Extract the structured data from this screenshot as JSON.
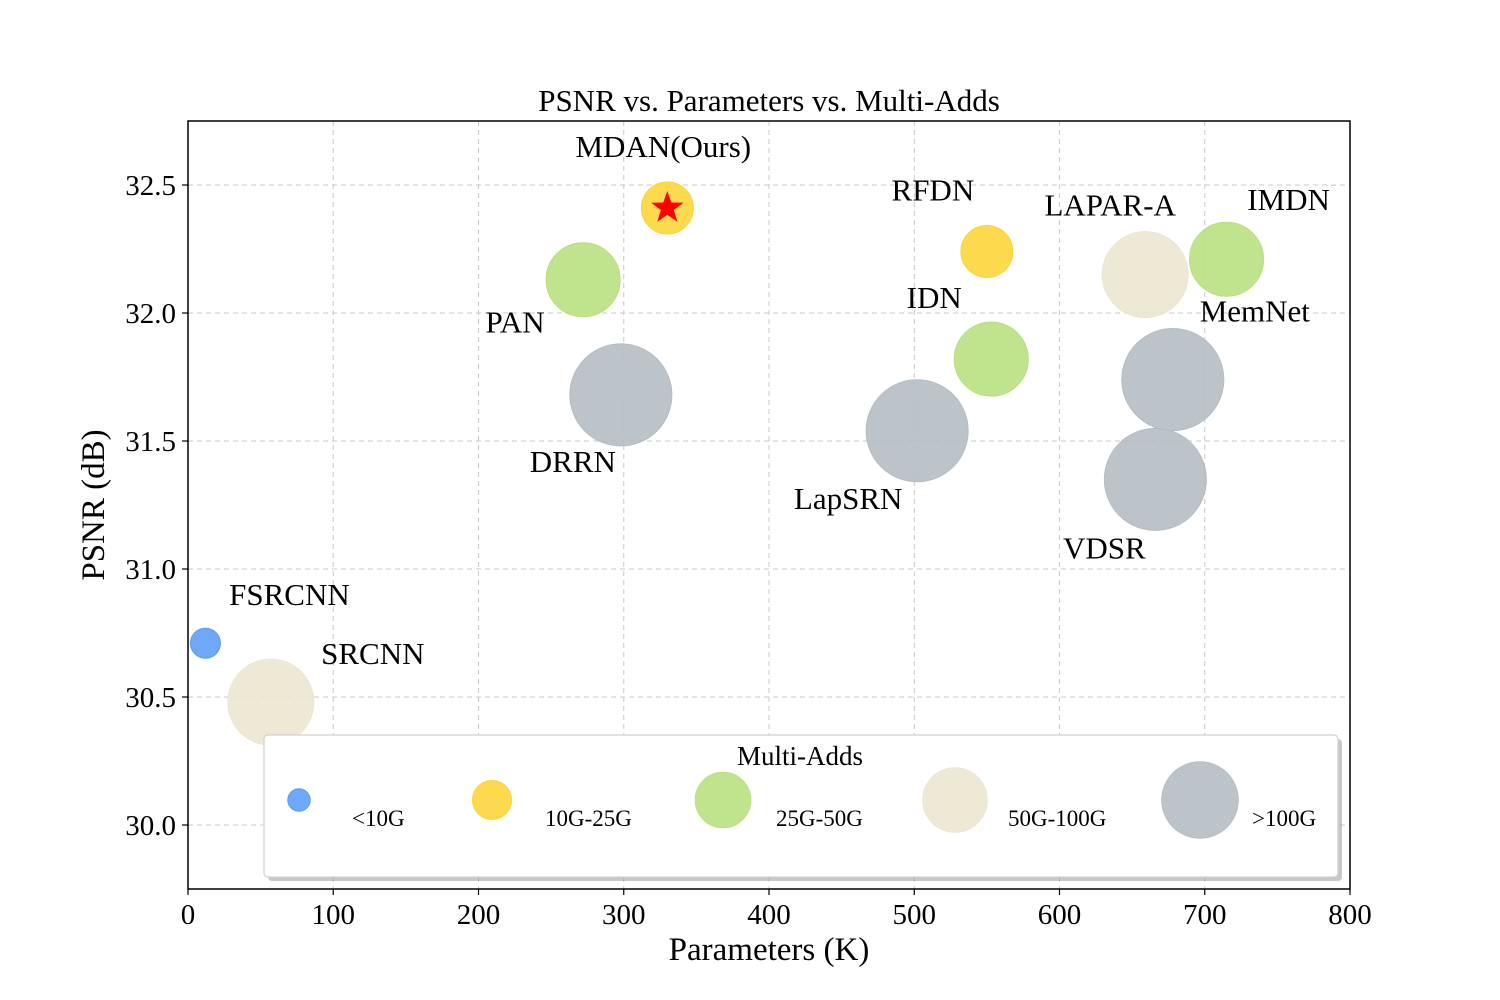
{
  "chart_data": {
    "type": "scatter",
    "title": "PSNR vs. Parameters vs. Multi-Adds",
    "xlabel": "Parameters (K)",
    "ylabel": "PSNR (dB)",
    "xlim": [
      0,
      800
    ],
    "ylim": [
      29.75,
      32.75
    ],
    "x_ticks": [
      0,
      100,
      200,
      300,
      400,
      500,
      600,
      700,
      800
    ],
    "x_tick_labels": [
      "0",
      "100",
      "200",
      "300",
      "400",
      "500",
      "600",
      "700",
      "800"
    ],
    "y_ticks": [
      30.0,
      30.5,
      31.0,
      31.5,
      32.0,
      32.5
    ],
    "y_tick_labels": [
      "30.0",
      "30.5",
      "31.0",
      "31.5",
      "32.0",
      "32.5"
    ],
    "grid": true,
    "categories": [
      {
        "label": "<10G",
        "color": "#5b9cf5"
      },
      {
        "label": "10G-25G",
        "color": "#fdd434"
      },
      {
        "label": "25G-50G",
        "color": "#b7df7e"
      },
      {
        "label": "50G-100G",
        "color": "#ebe6cf"
      },
      {
        "label": ">100G",
        "color": "#b3bcc2"
      }
    ],
    "points": [
      {
        "name": "FSRCNN",
        "x": 12,
        "y": 30.71,
        "category": "<10G"
      },
      {
        "name": "SRCNN",
        "x": 57,
        "y": 30.48,
        "category": "50G-100G"
      },
      {
        "name": "PAN",
        "x": 272,
        "y": 32.13,
        "category": "25G-50G"
      },
      {
        "name": "DRRN",
        "x": 298,
        "y": 31.68,
        "category": ">100G"
      },
      {
        "name": "MDAN(Ours)",
        "x": 330,
        "y": 32.41,
        "category": "10G-25G",
        "highlight": true
      },
      {
        "name": "LapSRN",
        "x": 502,
        "y": 31.54,
        "category": ">100G"
      },
      {
        "name": "RFDN",
        "x": 550,
        "y": 32.24,
        "category": "10G-25G"
      },
      {
        "name": "IDN",
        "x": 553,
        "y": 31.82,
        "category": "25G-50G"
      },
      {
        "name": "LAPAR-A",
        "x": 659,
        "y": 32.15,
        "category": "50G-100G"
      },
      {
        "name": "VDSR",
        "x": 666,
        "y": 31.35,
        "category": ">100G"
      },
      {
        "name": "MemNet",
        "x": 678,
        "y": 31.74,
        "category": ">100G"
      },
      {
        "name": "IMDN",
        "x": 715,
        "y": 32.21,
        "category": "25G-50G"
      }
    ],
    "legend": {
      "title": "Multi-Adds",
      "placement": "bottom"
    }
  }
}
